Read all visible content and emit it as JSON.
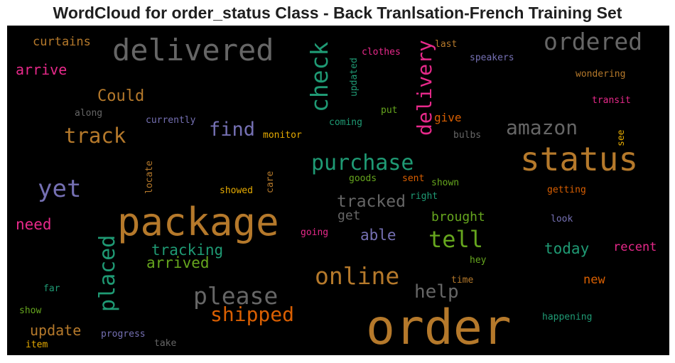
{
  "title": "WordCloud for order_status Class - Back Tranlsation-French Training Set",
  "words": [
    {
      "text": "order",
      "color": "#b5792b"
    },
    {
      "text": "package",
      "color": "#b5792b"
    },
    {
      "text": "status",
      "color": "#b5792b"
    },
    {
      "text": "delivered",
      "color": "#666666"
    },
    {
      "text": "ordered",
      "color": "#666666"
    },
    {
      "text": "check",
      "color": "#1f9a74"
    },
    {
      "text": "delivery",
      "color": "#e7298a"
    },
    {
      "text": "purchase",
      "color": "#1f9a74"
    },
    {
      "text": "amazon",
      "color": "#666666"
    },
    {
      "text": "yet",
      "color": "#7570b3"
    },
    {
      "text": "track",
      "color": "#b5792b"
    },
    {
      "text": "find",
      "color": "#7570b3"
    },
    {
      "text": "online",
      "color": "#b5792b"
    },
    {
      "text": "please",
      "color": "#666666"
    },
    {
      "text": "shipped",
      "color": "#d95f02"
    },
    {
      "text": "placed",
      "color": "#1f9a74"
    },
    {
      "text": "tell",
      "color": "#66a61e"
    },
    {
      "text": "help",
      "color": "#666666"
    },
    {
      "text": "tracked",
      "color": "#666666"
    },
    {
      "text": "tracking",
      "color": "#1f9a74"
    },
    {
      "text": "arrived",
      "color": "#66a61e"
    },
    {
      "text": "today",
      "color": "#1f9a74"
    },
    {
      "text": "update",
      "color": "#b5792b"
    },
    {
      "text": "arrive",
      "color": "#e7298a"
    },
    {
      "text": "need",
      "color": "#e7298a"
    },
    {
      "text": "Could",
      "color": "#b5792b"
    },
    {
      "text": "able",
      "color": "#7570b3"
    },
    {
      "text": "brought",
      "color": "#66a61e"
    },
    {
      "text": "curtains",
      "color": "#b5792b"
    },
    {
      "text": "recent",
      "color": "#e7298a"
    },
    {
      "text": "get",
      "color": "#666666"
    },
    {
      "text": "new",
      "color": "#d95f02"
    },
    {
      "text": "give",
      "color": "#d95f02"
    },
    {
      "text": "clothes",
      "color": "#e7298a"
    },
    {
      "text": "last",
      "color": "#b5792b"
    },
    {
      "text": "speakers",
      "color": "#7570b3"
    },
    {
      "text": "wondering",
      "color": "#b5792b"
    },
    {
      "text": "transit",
      "color": "#e7298a"
    },
    {
      "text": "updated",
      "color": "#1f9a74"
    },
    {
      "text": "put",
      "color": "#66a61e"
    },
    {
      "text": "coming",
      "color": "#1f9a74"
    },
    {
      "text": "bulbs",
      "color": "#666666"
    },
    {
      "text": "see",
      "color": "#e6ab02"
    },
    {
      "text": "currently",
      "color": "#7570b3"
    },
    {
      "text": "along",
      "color": "#666666"
    },
    {
      "text": "monitor",
      "color": "#e6ab02"
    },
    {
      "text": "goods",
      "color": "#66a61e"
    },
    {
      "text": "sent",
      "color": "#d95f02"
    },
    {
      "text": "shown",
      "color": "#66a61e"
    },
    {
      "text": "right",
      "color": "#1f9a74"
    },
    {
      "text": "getting",
      "color": "#d95f02"
    },
    {
      "text": "locate",
      "color": "#b5792b"
    },
    {
      "text": "care",
      "color": "#b5792b"
    },
    {
      "text": "showed",
      "color": "#e6ab02"
    },
    {
      "text": "look",
      "color": "#7570b3"
    },
    {
      "text": "going",
      "color": "#e7298a"
    },
    {
      "text": "hey",
      "color": "#66a61e"
    },
    {
      "text": "time",
      "color": "#b5792b"
    },
    {
      "text": "far",
      "color": "#1f9a74"
    },
    {
      "text": "show",
      "color": "#66a61e"
    },
    {
      "text": "progress",
      "color": "#7570b3"
    },
    {
      "text": "take",
      "color": "#666666"
    },
    {
      "text": "item",
      "color": "#e6ab02"
    },
    {
      "text": "happening",
      "color": "#1f9a74"
    }
  ]
}
